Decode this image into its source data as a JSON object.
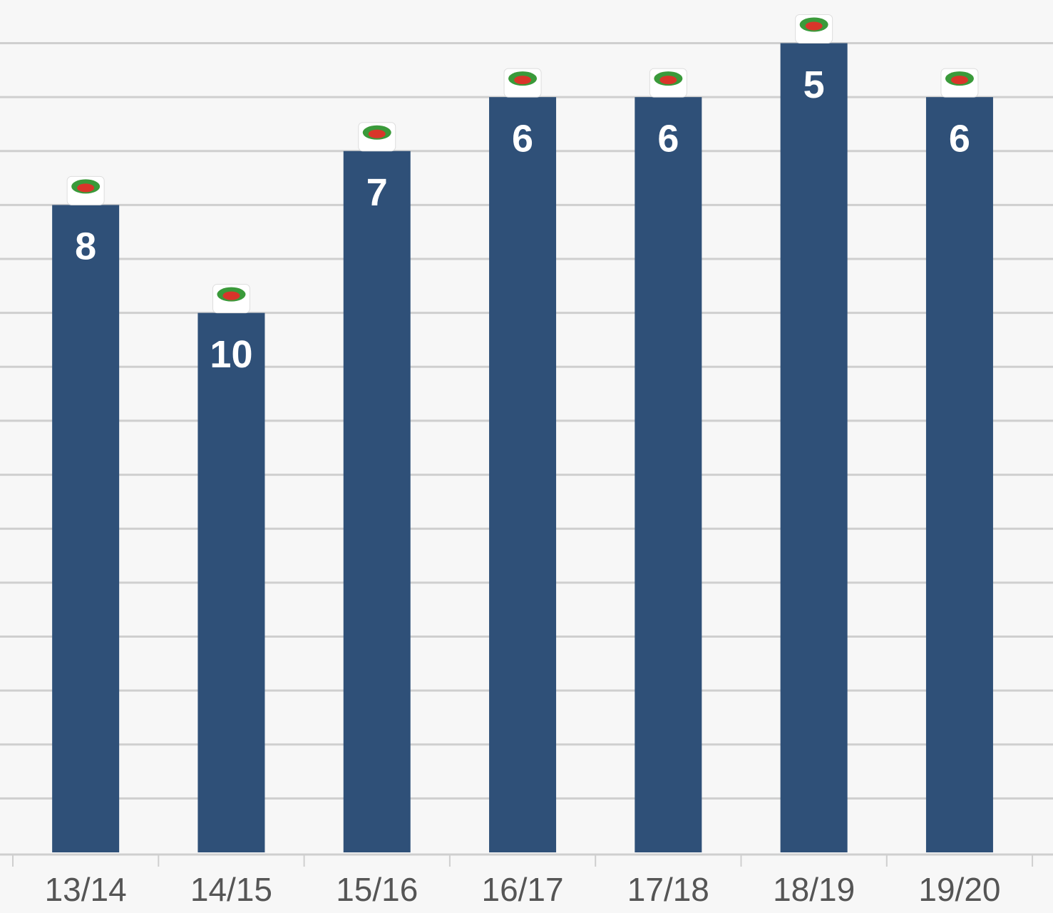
{
  "chart_data": {
    "type": "bar",
    "categories": [
      "13/14",
      "14/15",
      "15/16",
      "16/17",
      "17/18",
      "18/19",
      "19/20"
    ],
    "values": [
      8,
      10,
      7,
      6,
      6,
      5,
      6
    ],
    "color": "#2f5078",
    "ylim": [
      20,
      4.2
    ],
    "yticks": [
      5,
      6,
      7,
      8,
      9,
      10,
      11,
      12,
      13,
      14,
      15,
      16,
      17,
      18,
      19
    ],
    "grid": true
  }
}
